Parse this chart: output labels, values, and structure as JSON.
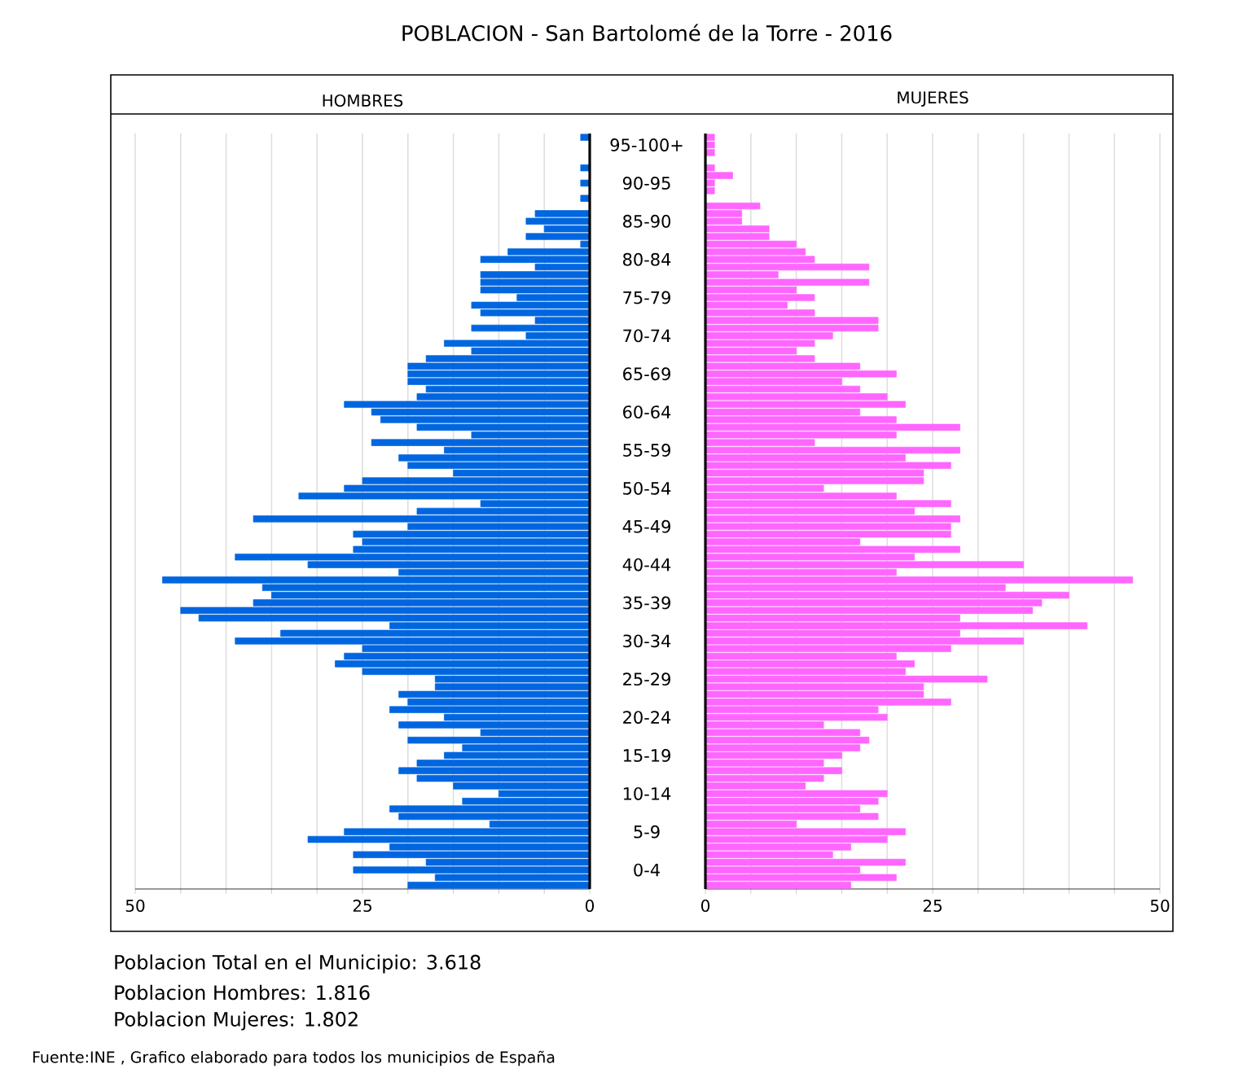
{
  "chart_data": [
    {
      "type": "other",
      "title": "POBLACION - San Bartolomé de la Torre - 2016",
      "annotations": [
        "Poblacion Total en el Municipio: 3.618",
        "Poblacion Hombres: 1.816",
        "Poblacion Mujeres: 1.802",
        "Fuente:INE , Grafico elaborado para todos los municipios de España"
      ]
    },
    {
      "type": "bar",
      "orientation": "horizontal",
      "title": "HOMBRES",
      "color": "#0066e0",
      "grid": "x",
      "tick_labels": "x",
      "categories": [
        null,
        null,
        null,
        null,
        null,
        null,
        null,
        null,
        null,
        null,
        null,
        null,
        null,
        null,
        null,
        null,
        null,
        null,
        null,
        null,
        null,
        null,
        null,
        null,
        null,
        null,
        null,
        null,
        null,
        null,
        null,
        null,
        null,
        null,
        null,
        null,
        null,
        null,
        null,
        null,
        null,
        null,
        null,
        null,
        null,
        null,
        null,
        null,
        null,
        null,
        null,
        null,
        null,
        null,
        null,
        null,
        null,
        null,
        null,
        null,
        null,
        null,
        null,
        null,
        null,
        null,
        null,
        null,
        null,
        null,
        null,
        null,
        null,
        null,
        null,
        null,
        null,
        null,
        null,
        null,
        null,
        null,
        null,
        null,
        null,
        null,
        null,
        null,
        null,
        null,
        null,
        null,
        null,
        null,
        null,
        null,
        null,
        null,
        null
      ],
      "values": [
        1,
        0,
        0,
        0,
        1,
        0,
        1,
        0,
        1,
        0,
        6,
        7,
        5,
        7,
        1,
        9,
        12,
        6,
        12,
        12,
        12,
        8,
        13,
        12,
        6,
        13,
        7,
        16,
        13,
        18,
        20,
        20,
        20,
        18,
        19,
        27,
        24,
        23,
        19,
        13,
        24,
        16,
        21,
        20,
        15,
        25,
        27,
        32,
        12,
        19,
        37,
        20,
        26,
        25,
        26,
        39,
        31,
        21,
        47,
        36,
        35,
        37,
        45,
        43,
        22,
        34,
        39,
        25,
        27,
        28,
        25,
        17,
        17,
        21,
        20,
        22,
        16,
        21,
        12,
        20,
        14,
        16,
        19,
        21,
        19,
        15,
        10,
        14,
        22,
        21,
        11,
        27,
        31,
        22,
        26,
        18,
        26,
        17,
        20
      ],
      "xlim": [
        50,
        0
      ],
      "xticks": [
        50,
        {
          "value": 45,
          "label": null
        },
        {
          "value": 40,
          "label": null
        },
        {
          "value": 35,
          "label": null
        },
        {
          "value": 30,
          "label": null
        },
        25,
        {
          "value": 20,
          "label": null
        },
        {
          "value": 15,
          "label": null
        },
        {
          "value": 10,
          "label": null
        },
        {
          "value": 5,
          "label": null
        },
        0
      ]
    },
    {
      "type": "bar",
      "orientation": "horizontal",
      "title": "MUJERES",
      "color": "#ff66ff",
      "grid": "x",
      "categories": [
        null,
        "95-100+",
        null,
        null,
        null,
        null,
        "90-95",
        null,
        null,
        null,
        null,
        "85-90",
        null,
        null,
        null,
        null,
        "80-84",
        null,
        null,
        null,
        null,
        "75-79",
        null,
        null,
        null,
        null,
        "70-74",
        null,
        null,
        null,
        null,
        "65-69",
        null,
        null,
        null,
        null,
        "60-64",
        null,
        null,
        null,
        null,
        "55-59",
        null,
        null,
        null,
        null,
        "50-54",
        null,
        null,
        null,
        null,
        "45-49",
        null,
        null,
        null,
        null,
        "40-44",
        null,
        null,
        null,
        null,
        "35-39",
        null,
        null,
        null,
        null,
        "30-34",
        null,
        null,
        null,
        null,
        "25-29",
        null,
        null,
        null,
        null,
        "20-24",
        null,
        null,
        null,
        null,
        "15-19",
        null,
        null,
        null,
        null,
        "10-14",
        null,
        null,
        null,
        null,
        "5-9",
        null,
        null,
        null,
        null,
        "0-4",
        null,
        null
      ],
      "values": [
        1,
        1,
        1,
        0,
        1,
        3,
        1,
        1,
        0,
        6,
        4,
        4,
        7,
        7,
        10,
        11,
        12,
        18,
        8,
        18,
        10,
        12,
        9,
        12,
        19,
        19,
        14,
        12,
        10,
        12,
        17,
        21,
        15,
        17,
        20,
        22,
        17,
        21,
        28,
        21,
        12,
        28,
        22,
        27,
        24,
        24,
        13,
        21,
        27,
        23,
        28,
        27,
        27,
        17,
        28,
        23,
        35,
        21,
        47,
        33,
        40,
        37,
        36,
        28,
        42,
        28,
        35,
        27,
        21,
        23,
        22,
        31,
        24,
        24,
        27,
        19,
        20,
        13,
        17,
        18,
        17,
        15,
        13,
        15,
        13,
        11,
        20,
        19,
        17,
        19,
        10,
        22,
        20,
        16,
        14,
        22,
        17,
        21,
        16
      ],
      "xlim": [
        0,
        50
      ],
      "xticks": [
        0,
        {
          "value": 5,
          "label": null
        },
        {
          "value": 10,
          "label": null
        },
        {
          "value": 15,
          "label": null
        },
        {
          "value": 20,
          "label": null
        },
        25,
        {
          "value": 30,
          "label": null
        },
        {
          "value": 35,
          "label": null
        },
        {
          "value": 40,
          "label": null
        },
        {
          "value": 45,
          "label": null
        },
        50
      ]
    }
  ]
}
